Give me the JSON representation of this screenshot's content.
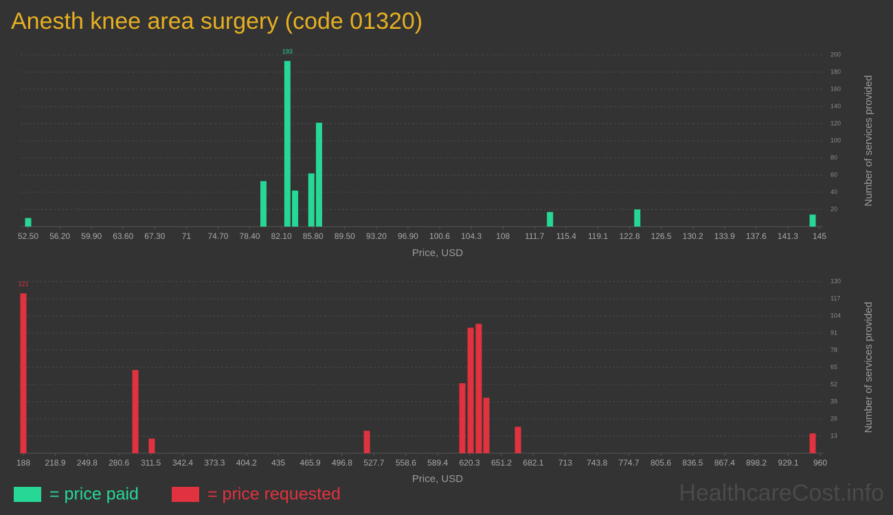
{
  "title": "Anesth knee area surgery (code 01320)",
  "watermark": "HealthcareCost.info",
  "chart_data": [
    {
      "type": "bar",
      "xlabel": "Price, USD",
      "ylabel": "Number of services provided",
      "x": [
        52.5,
        80.0,
        82.8,
        83.7,
        85.6,
        86.5,
        113.5,
        123.7,
        144.2
      ],
      "series": [
        {
          "name": "= price paid",
          "color": "#27d796",
          "values": [
            10,
            53,
            193,
            42,
            62,
            121,
            17,
            20,
            14
          ]
        }
      ],
      "xlim": [
        52.5,
        145
      ],
      "xticks": [
        {
          "value": 52.5,
          "label": "52.50"
        },
        {
          "value": 56.2,
          "label": "56.20"
        },
        {
          "value": 59.9,
          "label": "59.90"
        },
        {
          "value": 63.6,
          "label": "63.60"
        },
        {
          "value": 67.3,
          "label": "67.30"
        },
        71,
        {
          "value": 74.7,
          "label": "74.70"
        },
        {
          "value": 78.4,
          "label": "78.40"
        },
        {
          "value": 82.1,
          "label": "82.10"
        },
        {
          "value": 85.8,
          "label": "85.80"
        },
        {
          "value": 89.5,
          "label": "89.50"
        },
        {
          "value": 93.2,
          "label": "93.20"
        },
        {
          "value": 96.9,
          "label": "96.90"
        },
        100.6,
        104.3,
        108,
        111.7,
        115.4,
        119.1,
        122.8,
        126.5,
        130.2,
        133.9,
        137.6,
        141.3,
        145
      ],
      "ylim": [
        0,
        200
      ],
      "yticks": [
        20,
        40,
        60,
        80,
        100,
        120,
        140,
        160,
        180,
        200
      ],
      "grid": true
    },
    {
      "type": "bar",
      "xlabel": "Price, USD",
      "ylabel": "Number of services provided",
      "x": [
        188,
        296.5,
        312.4,
        520.8,
        613.3,
        621.3,
        629.2,
        636.6,
        667.2,
        952.7
      ],
      "series": [
        {
          "name": "= price requested",
          "color": "#e0323f",
          "values": [
            121,
            63,
            11,
            17,
            53,
            95,
            98,
            42,
            20,
            15
          ]
        }
      ],
      "xlim": [
        188,
        960
      ],
      "xticks": [
        188,
        218.9,
        249.8,
        280.6,
        311.5,
        342.4,
        373.3,
        404.2,
        435,
        465.9,
        496.8,
        527.7,
        558.6,
        589.4,
        620.3,
        651.2,
        682.1,
        713,
        743.8,
        774.7,
        805.6,
        836.5,
        867.4,
        898.2,
        929.1,
        960
      ],
      "ylim": [
        0,
        130
      ],
      "yticks": [
        13,
        26,
        39,
        52,
        65,
        78,
        91,
        104,
        117,
        130
      ],
      "grid": true
    }
  ]
}
